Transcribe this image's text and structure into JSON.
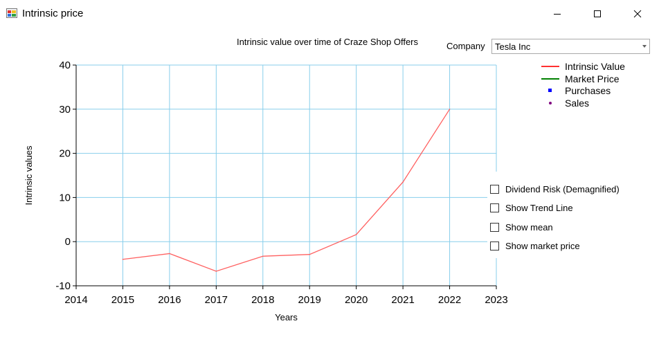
{
  "window": {
    "title": "Intrinsic price",
    "icon": "app-chart-icon"
  },
  "chart_title": "Intrinsic value over time of Craze Shop Offers",
  "company": {
    "label": "Company",
    "selected": "Tesla Inc"
  },
  "legend": [
    {
      "label": "Intrinsic Value",
      "color": "#ff3030",
      "marker": "line"
    },
    {
      "label": "Market Price",
      "color": "#008000",
      "marker": "line"
    },
    {
      "label": "Purchases",
      "color": "#0000ff",
      "marker": "square"
    },
    {
      "label": "Sales",
      "color": "#800080",
      "marker": "dot"
    }
  ],
  "options": [
    {
      "label": "Dividend Risk (Demagnified)",
      "checked": false
    },
    {
      "label": "Show Trend Line",
      "checked": false
    },
    {
      "label": "Show mean",
      "checked": false
    },
    {
      "label": "Show market price",
      "checked": false
    }
  ],
  "chart_data": {
    "type": "line",
    "xlabel": "Years",
    "ylabel": "Intrinsic values",
    "xlim": [
      2014,
      2023
    ],
    "ylim": [
      -10,
      40
    ],
    "x_ticks": [
      2014,
      2015,
      2016,
      2017,
      2018,
      2019,
      2020,
      2021,
      2022,
      2023
    ],
    "y_ticks": [
      -10,
      0,
      10,
      20,
      30,
      40
    ],
    "grid": true,
    "legend_position": "top-right",
    "series": [
      {
        "name": "Intrinsic Value",
        "color": "#ff6060",
        "x": [
          2015,
          2016,
          2017,
          2018,
          2019,
          2020,
          2021,
          2022
        ],
        "y": [
          -4.0,
          -2.7,
          -6.7,
          -3.3,
          -2.9,
          1.6,
          13.5,
          30.0
        ]
      }
    ]
  }
}
